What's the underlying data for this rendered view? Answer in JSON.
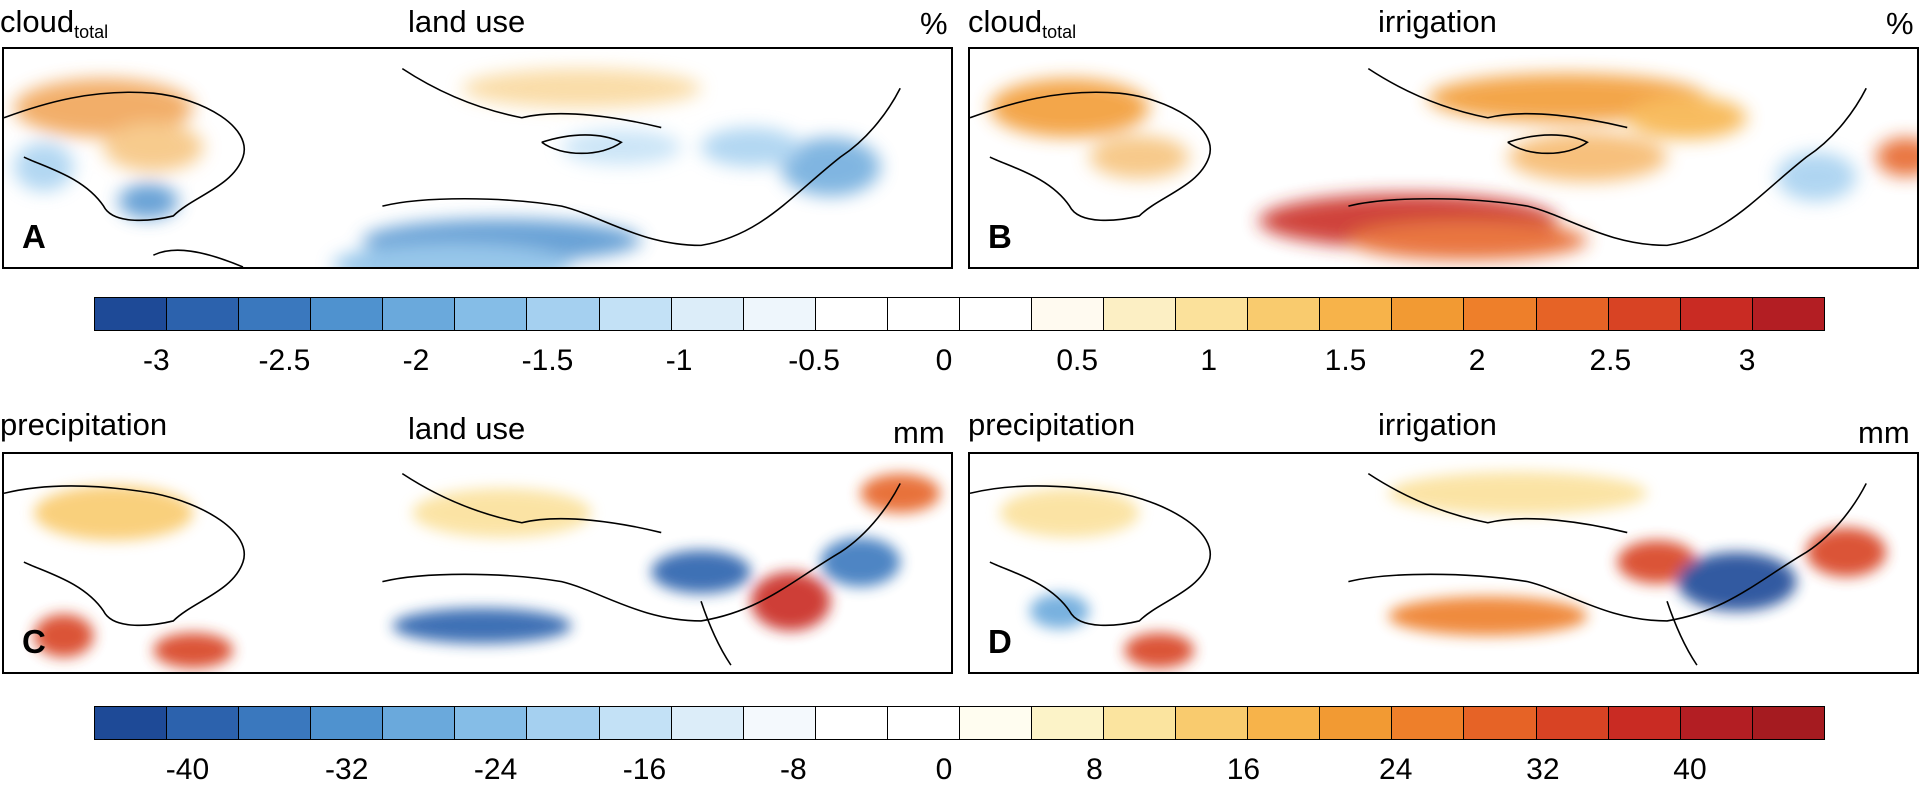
{
  "panels": [
    {
      "id": "A",
      "variable": "cloud",
      "variable_sub": "total",
      "scenario": "land use",
      "unit": "%"
    },
    {
      "id": "B",
      "variable": "cloud",
      "variable_sub": "total",
      "scenario": "irrigation",
      "unit": "%"
    },
    {
      "id": "C",
      "variable": "precipitation",
      "variable_sub": "",
      "scenario": "land use",
      "unit": "mm"
    },
    {
      "id": "D",
      "variable": "precipitation",
      "variable_sub": "",
      "scenario": "irrigation",
      "unit": "mm"
    }
  ],
  "colorbars": {
    "cloud": {
      "ticks": [
        "-3",
        "-2.5",
        "-2",
        "-1.5",
        "-1",
        "-0.5",
        "0",
        "0.5",
        "1",
        "1.5",
        "2",
        "2.5",
        "3"
      ],
      "colors": [
        "#1e4a97",
        "#2c62ad",
        "#3a78be",
        "#4f92cf",
        "#6aa9dc",
        "#85bde7",
        "#a5d0f0",
        "#c3e1f6",
        "#dcedf9",
        "#eef6fc",
        "#ffffff",
        "#ffffff",
        "#ffffff",
        "#fffaf0",
        "#fcefc4",
        "#fbe19b",
        "#f9cb6e",
        "#f7b34a",
        "#f29a33",
        "#ee7f2a",
        "#e66326",
        "#d84324",
        "#c92b23",
        "#b31e23"
      ]
    },
    "precipitation": {
      "ticks": [
        "-40",
        "-32",
        "-24",
        "-16",
        "-8",
        "0",
        "8",
        "16",
        "24",
        "32",
        "40"
      ],
      "colors": [
        "#1e4a97",
        "#2c62ad",
        "#3a78be",
        "#4f92cf",
        "#6aa9dc",
        "#85bde7",
        "#a5d0f0",
        "#c3e1f6",
        "#dcedf9",
        "#f4f9fd",
        "#ffffff",
        "#ffffff",
        "#fffdf0",
        "#fcf3c8",
        "#fbe49f",
        "#f9cb6e",
        "#f7b34a",
        "#f29a33",
        "#ee7f2a",
        "#e66326",
        "#d84324",
        "#c92b23",
        "#b31e23",
        "#a51b20"
      ]
    }
  }
}
